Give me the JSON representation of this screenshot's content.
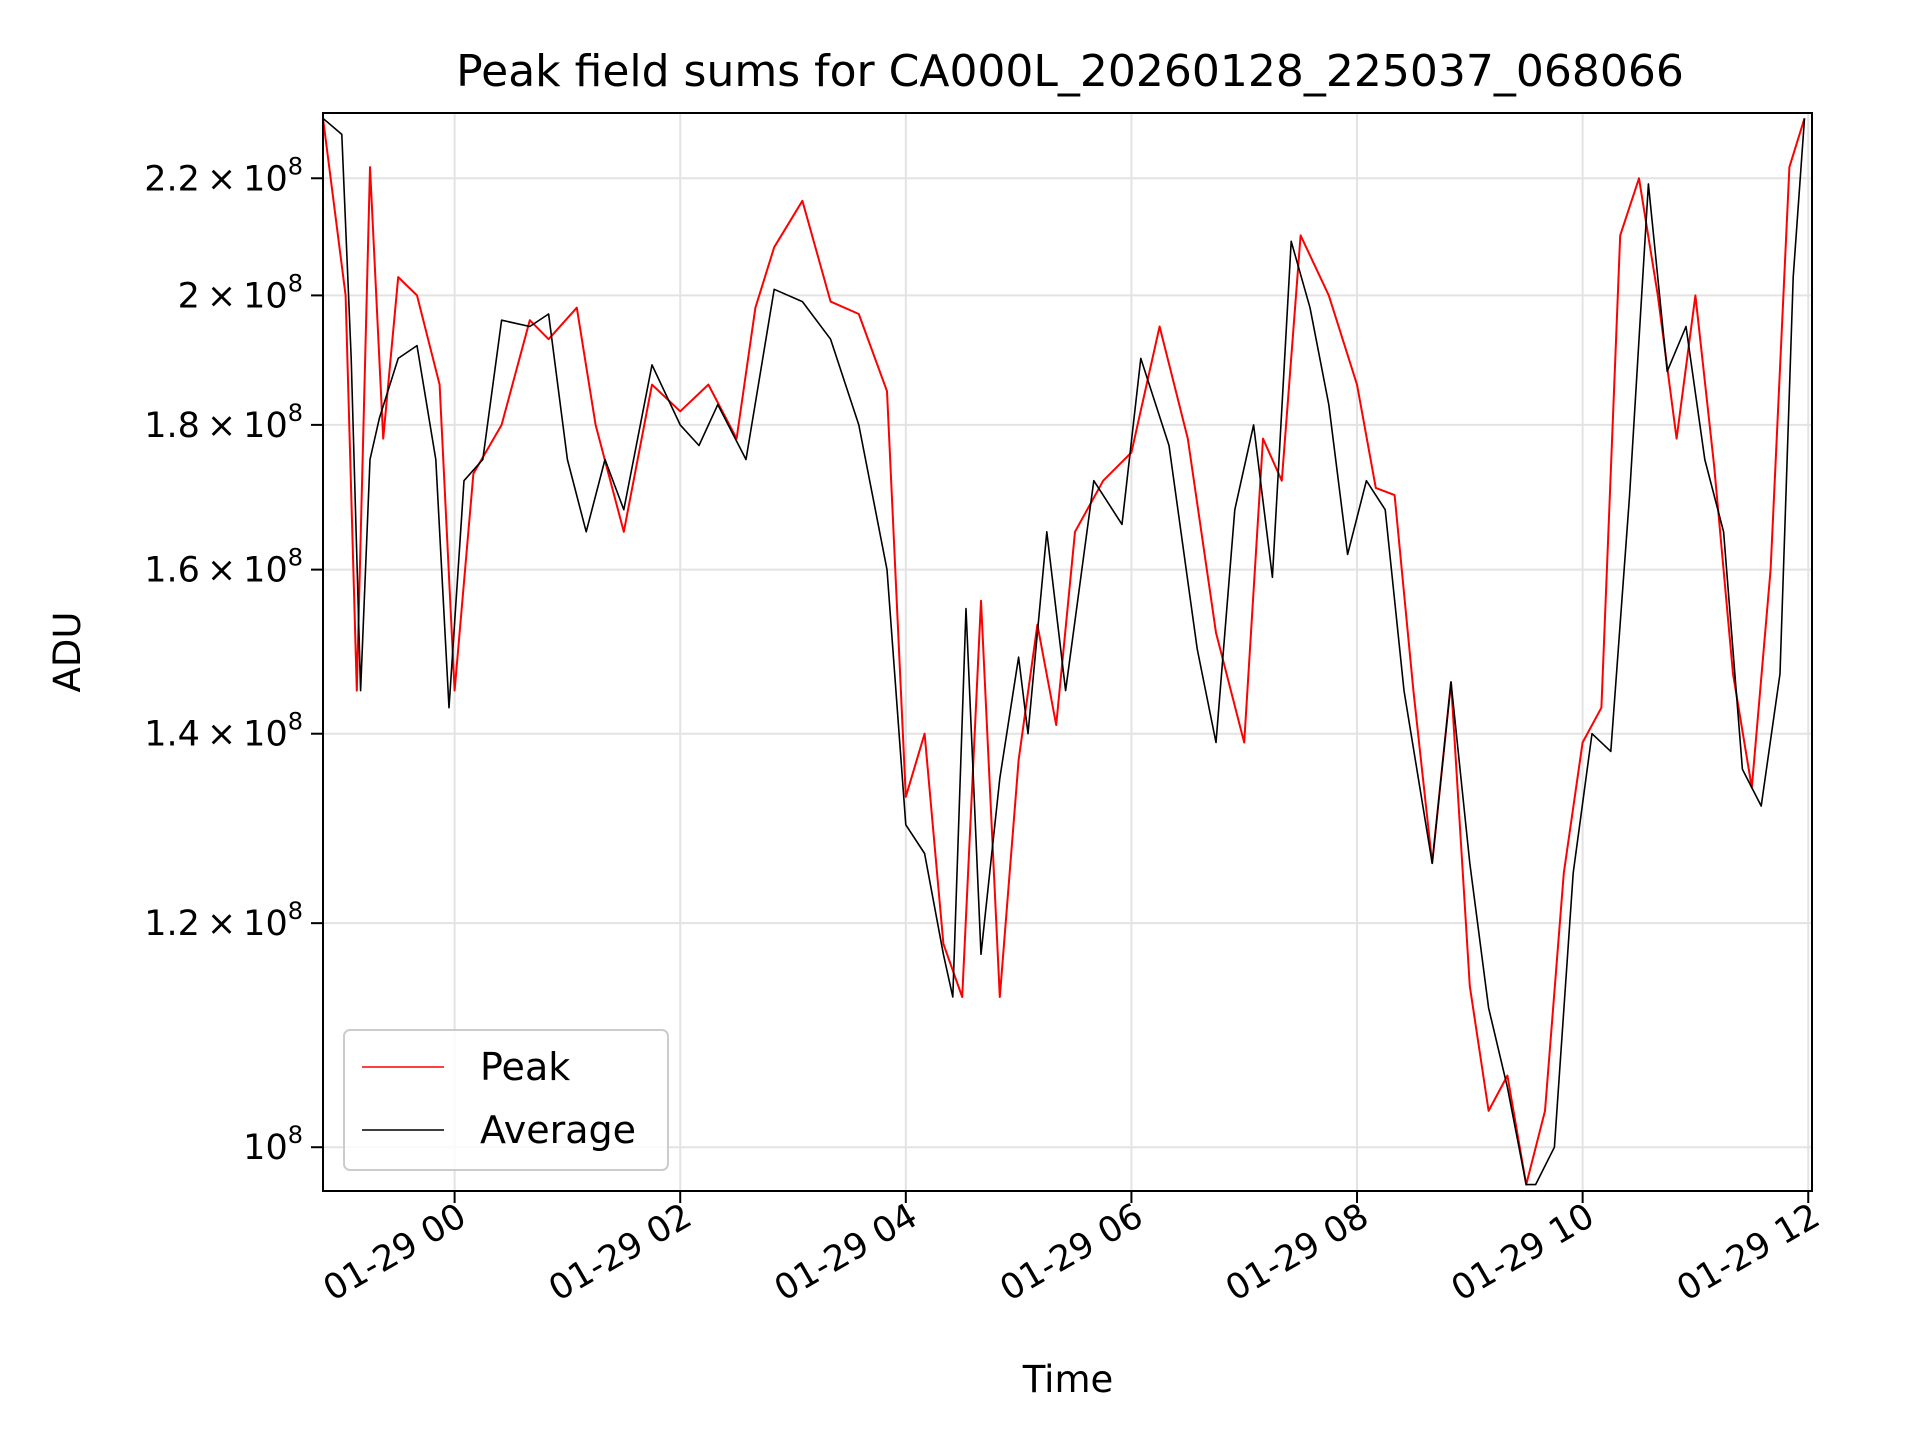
{
  "chart_data": {
    "type": "line",
    "title": "Peak field sums for CA000L_20260128_225037_068066",
    "xlabel": "Time",
    "ylabel": "ADU",
    "x_axis": "time",
    "y_scale": "log",
    "xlim": [
      "2026-01-28 22:50",
      "2026-01-29 12:02"
    ],
    "ylim": [
      96500000,
      232000000
    ],
    "grid": true,
    "legend_position": "lower-left",
    "x_ticks": [
      {
        "value": "2026-01-29 00:00",
        "label": "01-29 00"
      },
      {
        "value": "2026-01-29 02:00",
        "label": "01-29 02"
      },
      {
        "value": "2026-01-29 04:00",
        "label": "01-29 04"
      },
      {
        "value": "2026-01-29 06:00",
        "label": "01-29 06"
      },
      {
        "value": "2026-01-29 08:00",
        "label": "01-29 08"
      },
      {
        "value": "2026-01-29 10:00",
        "label": "01-29 10"
      },
      {
        "value": "2026-01-29 12:00",
        "label": "01-29 12"
      }
    ],
    "y_ticks": [
      {
        "value": 100000000,
        "mantissa": "",
        "exp": "8"
      },
      {
        "value": 120000000,
        "mantissa": "1.2",
        "exp": "8"
      },
      {
        "value": 140000000,
        "mantissa": "1.4",
        "exp": "8"
      },
      {
        "value": 160000000,
        "mantissa": "1.6",
        "exp": "8"
      },
      {
        "value": 180000000,
        "mantissa": "1.8",
        "exp": "8"
      },
      {
        "value": 200000000,
        "mantissa": "2",
        "exp": "8"
      },
      {
        "value": 220000000,
        "mantissa": "2.2",
        "exp": "8"
      }
    ],
    "series": [
      {
        "name": "Peak",
        "color": "#ff0000",
        "x": [
          "2026-01-28 22:50",
          "2026-01-28 23:02",
          "2026-01-28 23:08",
          "2026-01-28 23:15",
          "2026-01-28 23:22",
          "2026-01-28 23:30",
          "2026-01-28 23:40",
          "2026-01-28 23:52",
          "2026-01-29 00:00",
          "2026-01-29 00:10",
          "2026-01-29 00:25",
          "2026-01-29 00:40",
          "2026-01-29 00:50",
          "2026-01-29 01:05",
          "2026-01-29 01:15",
          "2026-01-29 01:30",
          "2026-01-29 01:45",
          "2026-01-29 02:00",
          "2026-01-29 02:15",
          "2026-01-29 02:30",
          "2026-01-29 02:40",
          "2026-01-29 02:50",
          "2026-01-29 03:05",
          "2026-01-29 03:20",
          "2026-01-29 03:35",
          "2026-01-29 03:50",
          "2026-01-29 04:00",
          "2026-01-29 04:10",
          "2026-01-29 04:20",
          "2026-01-29 04:30",
          "2026-01-29 04:40",
          "2026-01-29 04:50",
          "2026-01-29 05:00",
          "2026-01-29 05:10",
          "2026-01-29 05:20",
          "2026-01-29 05:30",
          "2026-01-29 05:45",
          "2026-01-29 06:00",
          "2026-01-29 06:15",
          "2026-01-29 06:30",
          "2026-01-29 06:45",
          "2026-01-29 07:00",
          "2026-01-29 07:10",
          "2026-01-29 07:20",
          "2026-01-29 07:30",
          "2026-01-29 07:45",
          "2026-01-29 08:00",
          "2026-01-29 08:10",
          "2026-01-29 08:20",
          "2026-01-29 08:30",
          "2026-01-29 08:40",
          "2026-01-29 08:50",
          "2026-01-29 09:00",
          "2026-01-29 09:10",
          "2026-01-29 09:20",
          "2026-01-29 09:30",
          "2026-01-29 09:40",
          "2026-01-29 09:50",
          "2026-01-29 10:00",
          "2026-01-29 10:10",
          "2026-01-29 10:20",
          "2026-01-29 10:30",
          "2026-01-29 10:40",
          "2026-01-29 10:50",
          "2026-01-29 11:00",
          "2026-01-29 11:10",
          "2026-01-29 11:20",
          "2026-01-29 11:30",
          "2026-01-29 11:40",
          "2026-01-29 11:50",
          "2026-01-29 11:58"
        ],
        "values": [
          231000000,
          200000000,
          145000000,
          222000000,
          178000000,
          203000000,
          200000000,
          186000000,
          145000000,
          173000000,
          180000000,
          196000000,
          193000000,
          198000000,
          180000000,
          165000000,
          186000000,
          182000000,
          186000000,
          178000000,
          198000000,
          208000000,
          216000000,
          199000000,
          197000000,
          185000000,
          133000000,
          140000000,
          118000000,
          113000000,
          156000000,
          113000000,
          137000000,
          153000000,
          141000000,
          165000000,
          172000000,
          176000000,
          195000000,
          178000000,
          152000000,
          139000000,
          178000000,
          172000000,
          210000000,
          200000000,
          186000000,
          171000000,
          170000000,
          145000000,
          126000000,
          146000000,
          114000000,
          103000000,
          106000000,
          97000000,
          103000000,
          125000000,
          139000000,
          143000000,
          210000000,
          220000000,
          200000000,
          178000000,
          200000000,
          174000000,
          147000000,
          134000000,
          160000000,
          222000000,
          231000000
        ]
      },
      {
        "name": "Average",
        "color": "#000000",
        "x": [
          "2026-01-28 22:50",
          "2026-01-28 23:00",
          "2026-01-28 23:05",
          "2026-01-28 23:10",
          "2026-01-28 23:15",
          "2026-01-28 23:20",
          "2026-01-28 23:30",
          "2026-01-28 23:40",
          "2026-01-28 23:50",
          "2026-01-28 23:57",
          "2026-01-29 00:05",
          "2026-01-29 00:15",
          "2026-01-29 00:25",
          "2026-01-29 00:40",
          "2026-01-29 00:50",
          "2026-01-29 01:00",
          "2026-01-29 01:10",
          "2026-01-29 01:20",
          "2026-01-29 01:30",
          "2026-01-29 01:45",
          "2026-01-29 02:00",
          "2026-01-29 02:10",
          "2026-01-29 02:20",
          "2026-01-29 02:35",
          "2026-01-29 02:50",
          "2026-01-29 03:05",
          "2026-01-29 03:20",
          "2026-01-29 03:35",
          "2026-01-29 03:50",
          "2026-01-29 04:00",
          "2026-01-29 04:10",
          "2026-01-29 04:20",
          "2026-01-29 04:25",
          "2026-01-29 04:32",
          "2026-01-29 04:40",
          "2026-01-29 04:50",
          "2026-01-29 05:00",
          "2026-01-29 05:05",
          "2026-01-29 05:15",
          "2026-01-29 05:25",
          "2026-01-29 05:40",
          "2026-01-29 05:55",
          "2026-01-29 06:05",
          "2026-01-29 06:20",
          "2026-01-29 06:35",
          "2026-01-29 06:45",
          "2026-01-29 06:55",
          "2026-01-29 07:05",
          "2026-01-29 07:15",
          "2026-01-29 07:25",
          "2026-01-29 07:35",
          "2026-01-29 07:45",
          "2026-01-29 07:55",
          "2026-01-29 08:05",
          "2026-01-29 08:15",
          "2026-01-29 08:25",
          "2026-01-29 08:40",
          "2026-01-29 08:50",
          "2026-01-29 09:00",
          "2026-01-29 09:10",
          "2026-01-29 09:20",
          "2026-01-29 09:30",
          "2026-01-29 09:35",
          "2026-01-29 09:45",
          "2026-01-29 09:55",
          "2026-01-29 10:05",
          "2026-01-29 10:15",
          "2026-01-29 10:25",
          "2026-01-29 10:35",
          "2026-01-29 10:45",
          "2026-01-29 10:55",
          "2026-01-29 11:05",
          "2026-01-29 11:15",
          "2026-01-29 11:25",
          "2026-01-29 11:35",
          "2026-01-29 11:45",
          "2026-01-29 11:52",
          "2026-01-29 11:58"
        ],
        "values": [
          231000000,
          228000000,
          190000000,
          145000000,
          175000000,
          181000000,
          190000000,
          192000000,
          175000000,
          143000000,
          172000000,
          175000000,
          196000000,
          195000000,
          197000000,
          175000000,
          165000000,
          175000000,
          168000000,
          189000000,
          180000000,
          177000000,
          183000000,
          175000000,
          201000000,
          199000000,
          193000000,
          180000000,
          160000000,
          130000000,
          127000000,
          117000000,
          113000000,
          155000000,
          117000000,
          135000000,
          149000000,
          140000000,
          165000000,
          145000000,
          172000000,
          166000000,
          190000000,
          177000000,
          150000000,
          139000000,
          168000000,
          180000000,
          159000000,
          209000000,
          198000000,
          183000000,
          162000000,
          172000000,
          168000000,
          145000000,
          126000000,
          146000000,
          126000000,
          112000000,
          105000000,
          97000000,
          97000000,
          100000000,
          125000000,
          140000000,
          138000000,
          170000000,
          219000000,
          188000000,
          195000000,
          175000000,
          165000000,
          136000000,
          132000000,
          147000000,
          203000000,
          231000000
        ]
      }
    ]
  },
  "legend": {
    "items": [
      {
        "label": "Peak",
        "color": "#ff0000"
      },
      {
        "label": "Average",
        "color": "#000000"
      }
    ]
  }
}
